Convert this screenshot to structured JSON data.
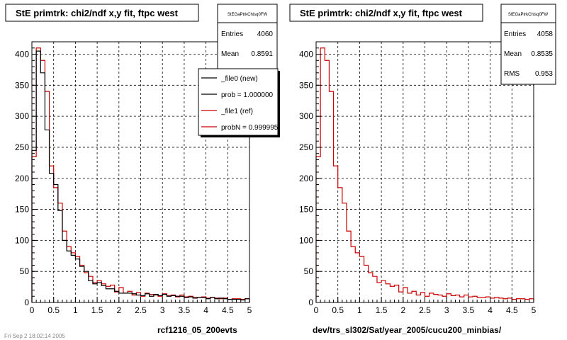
{
  "footer_text": "Fri Sep  2  18:02:14 2005",
  "chart_data": [
    {
      "type": "histogram",
      "title": "StE primtrk: chi2/ndf x,y fit, ftpc west",
      "xlabel": "rcf1216_05_200evts",
      "ylabel": "",
      "xlim": [
        0,
        5
      ],
      "ylim": [
        0,
        420
      ],
      "grid": true,
      "x_ticks": [
        "0",
        "0.5",
        "1",
        "1.5",
        "2",
        "2.5",
        "3",
        "3.5",
        "4",
        "4.5",
        "5"
      ],
      "y_ticks": [
        "0",
        "50",
        "100",
        "150",
        "200",
        "250",
        "300",
        "350",
        "400"
      ],
      "bin_width": 0.1,
      "stats": {
        "name": "StEGaPtrkChisq0FW",
        "rows": [
          {
            "label": "Entries",
            "value": "4060"
          },
          {
            "label": "Mean",
            "value": "0.8591"
          }
        ]
      },
      "legend": {
        "position": "top-right",
        "entries": [
          {
            "label": "_file0 (new)",
            "color": "#000000"
          },
          {
            "label": "prob = 1.000000",
            "color": "#000000"
          },
          {
            "label": "_file1 (ref)",
            "color": "#cc0000"
          },
          {
            "label": "probN = 0.999995",
            "color": "#cc0000"
          }
        ]
      },
      "series": [
        {
          "name": "_file0 (new)",
          "color": "#000000",
          "values": [
            245,
            405,
            370,
            278,
            208,
            190,
            148,
            100,
            83,
            76,
            70,
            58,
            50,
            35,
            30,
            32,
            27,
            22,
            22,
            18,
            15,
            15,
            15,
            14,
            12,
            11,
            14,
            10,
            13,
            11,
            13,
            10,
            11,
            10,
            10,
            8,
            9,
            7,
            8,
            8,
            6,
            8,
            6,
            7,
            6,
            5,
            5,
            5,
            4,
            6
          ]
        },
        {
          "name": "_file1 (ref)",
          "color": "#cc0000",
          "values": [
            235,
            410,
            390,
            340,
            220,
            185,
            160,
            115,
            90,
            80,
            74,
            60,
            48,
            42,
            32,
            35,
            30,
            26,
            28,
            17,
            24,
            15,
            18,
            12,
            16,
            10,
            15,
            13,
            12,
            10,
            14,
            11,
            12,
            9,
            12,
            9,
            10,
            8,
            8,
            9,
            7,
            8,
            7,
            6,
            7,
            5,
            6,
            6,
            5,
            6
          ]
        }
      ]
    },
    {
      "type": "histogram",
      "title": "StE primtrk: chi2/ndf x,y fit, ftpc west",
      "xlabel": "dev/trs_sl302/Sat/year_2005/cucu200_minbias/",
      "ylabel": "",
      "xlim": [
        0,
        5
      ],
      "ylim": [
        0,
        420
      ],
      "grid": true,
      "x_ticks": [
        "0",
        "0.5",
        "1",
        "1.5",
        "2",
        "2.5",
        "3",
        "3.5",
        "4",
        "4.5",
        "5"
      ],
      "y_ticks": [
        "0",
        "50",
        "100",
        "150",
        "200",
        "250",
        "300",
        "350",
        "400"
      ],
      "bin_width": 0.1,
      "stats": {
        "name": "StEGaPtrkChisq0FW",
        "rows": [
          {
            "label": "Entries",
            "value": "4058"
          },
          {
            "label": "Mean",
            "value": "0.8535"
          },
          {
            "label": "RMS",
            "value": "0.953"
          }
        ]
      },
      "series": [
        {
          "name": "",
          "color": "#cc0000",
          "values": [
            235,
            410,
            390,
            340,
            220,
            185,
            160,
            115,
            90,
            80,
            74,
            60,
            48,
            42,
            32,
            35,
            30,
            26,
            28,
            17,
            24,
            15,
            18,
            12,
            16,
            10,
            15,
            13,
            12,
            10,
            14,
            11,
            12,
            9,
            12,
            9,
            10,
            8,
            8,
            9,
            7,
            8,
            7,
            6,
            7,
            5,
            6,
            6,
            5,
            6
          ]
        }
      ]
    }
  ]
}
